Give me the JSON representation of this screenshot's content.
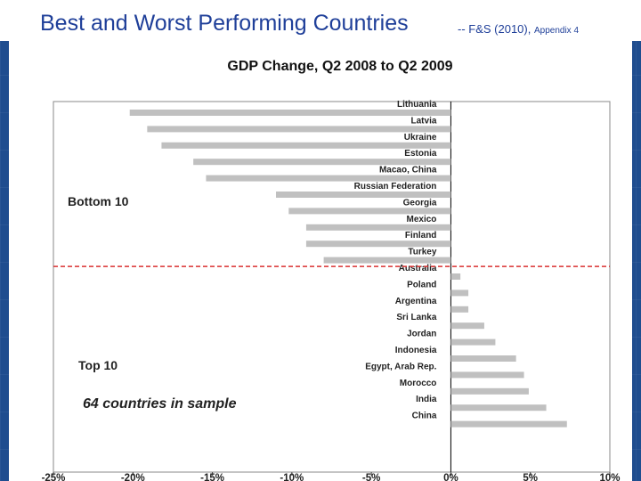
{
  "slide": {
    "title": "Best and Worst Performing Countries",
    "subtitle_main": "-- F&S (2010),",
    "subtitle_small": "Appendix 4",
    "colors": {
      "background": "#1f4d8f",
      "title": "#1f3f99",
      "bar": "#c0c0c0",
      "divider": "#d93030"
    }
  },
  "chart_data": {
    "type": "bar",
    "orientation": "horizontal",
    "title": "GDP Change, Q2 2008  to Q2 2009",
    "categories": [
      "Lithuania",
      "Latvia",
      "Ukraine",
      "Estonia",
      "Macao, China",
      "Russian Federation",
      "Georgia",
      "Mexico",
      "Finland",
      "Turkey",
      "Australia",
      "Poland",
      "Argentina",
      "Sri Lanka",
      "Jordan",
      "Indonesia",
      "Egypt, Arab Rep.",
      "Morocco",
      "India",
      "China"
    ],
    "values": [
      -20.2,
      -19.1,
      -18.2,
      -16.2,
      -15.4,
      -11.0,
      -10.2,
      -9.1,
      -9.1,
      -8.0,
      0.6,
      1.1,
      1.1,
      2.1,
      2.8,
      4.1,
      4.6,
      4.9,
      6.0,
      7.3
    ],
    "xlim": [
      -25,
      10
    ],
    "xticks": [
      -25,
      -20,
      -15,
      -10,
      -5,
      0,
      5,
      10
    ],
    "xtick_labels": [
      "-25%",
      "-20%",
      "-15%",
      "-10%",
      "-5%",
      "0%",
      "5%",
      "10%"
    ],
    "grid": false,
    "divider_after_index": 9,
    "annotations": [
      "Bottom 10",
      "Top 10",
      "64 countries in sample"
    ]
  }
}
